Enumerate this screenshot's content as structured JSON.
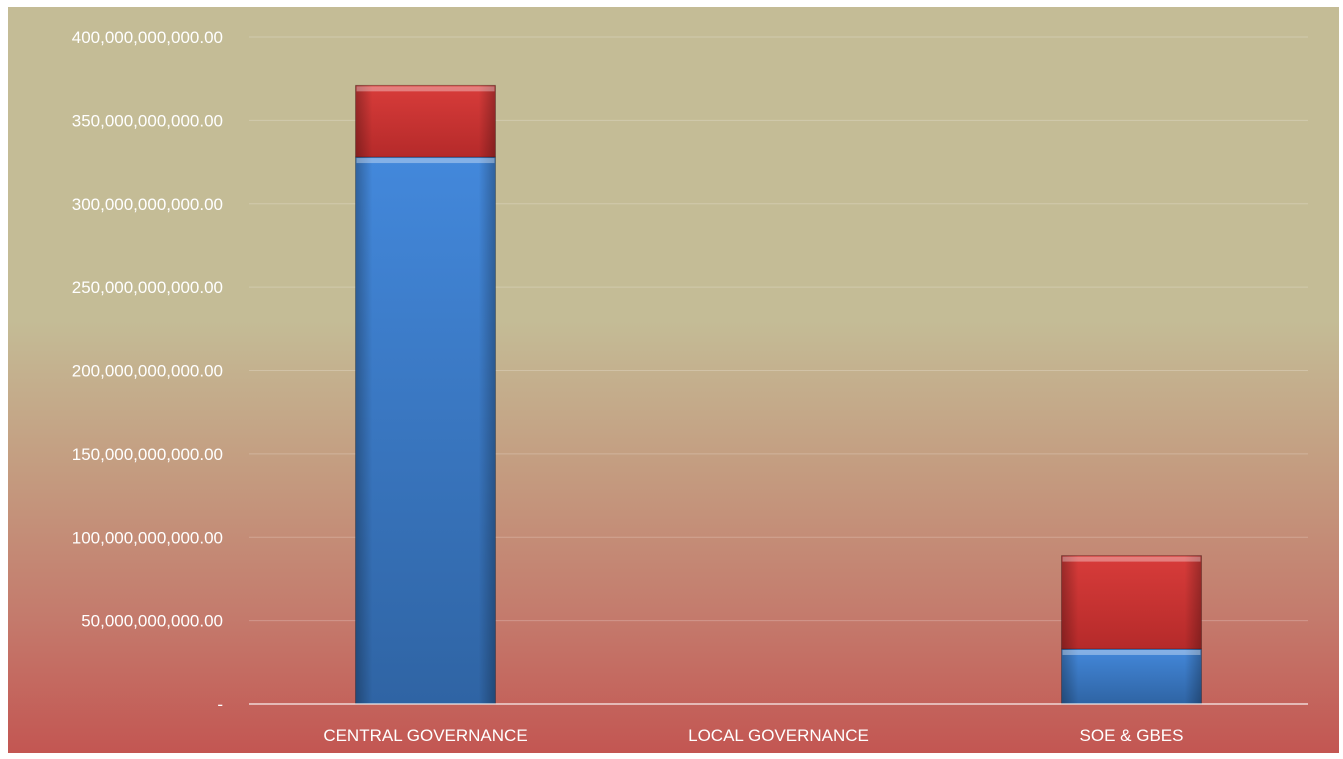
{
  "chart_data": {
    "type": "bar",
    "stacked": true,
    "categories": [
      "CENTRAL GOVERNANCE",
      "LOCAL GOVERNANCE",
      "SOE & GBES"
    ],
    "series": [
      {
        "values": [
          328000000000,
          0,
          33000000000
        ],
        "color": "#3a78c9"
      },
      {
        "values": [
          43000000000,
          0,
          56000000000
        ],
        "color": "#cf3434"
      }
    ],
    "ylim": [
      0,
      400000000000
    ],
    "y_ticks": [
      0,
      50000000000,
      100000000000,
      150000000000,
      200000000000,
      250000000000,
      300000000000,
      350000000000,
      400000000000
    ],
    "y_tick_labels": [
      "-",
      "50,000,000,000.00",
      "100,000,000,000.00",
      "150,000,000,000.00",
      "200,000,000,000.00",
      "250,000,000,000.00",
      "300,000,000,000.00",
      "350,000,000,000.00",
      "400,000,000,000.00"
    ],
    "grid": true,
    "legend": "none",
    "title": "",
    "xlabel": "",
    "ylabel": ""
  }
}
